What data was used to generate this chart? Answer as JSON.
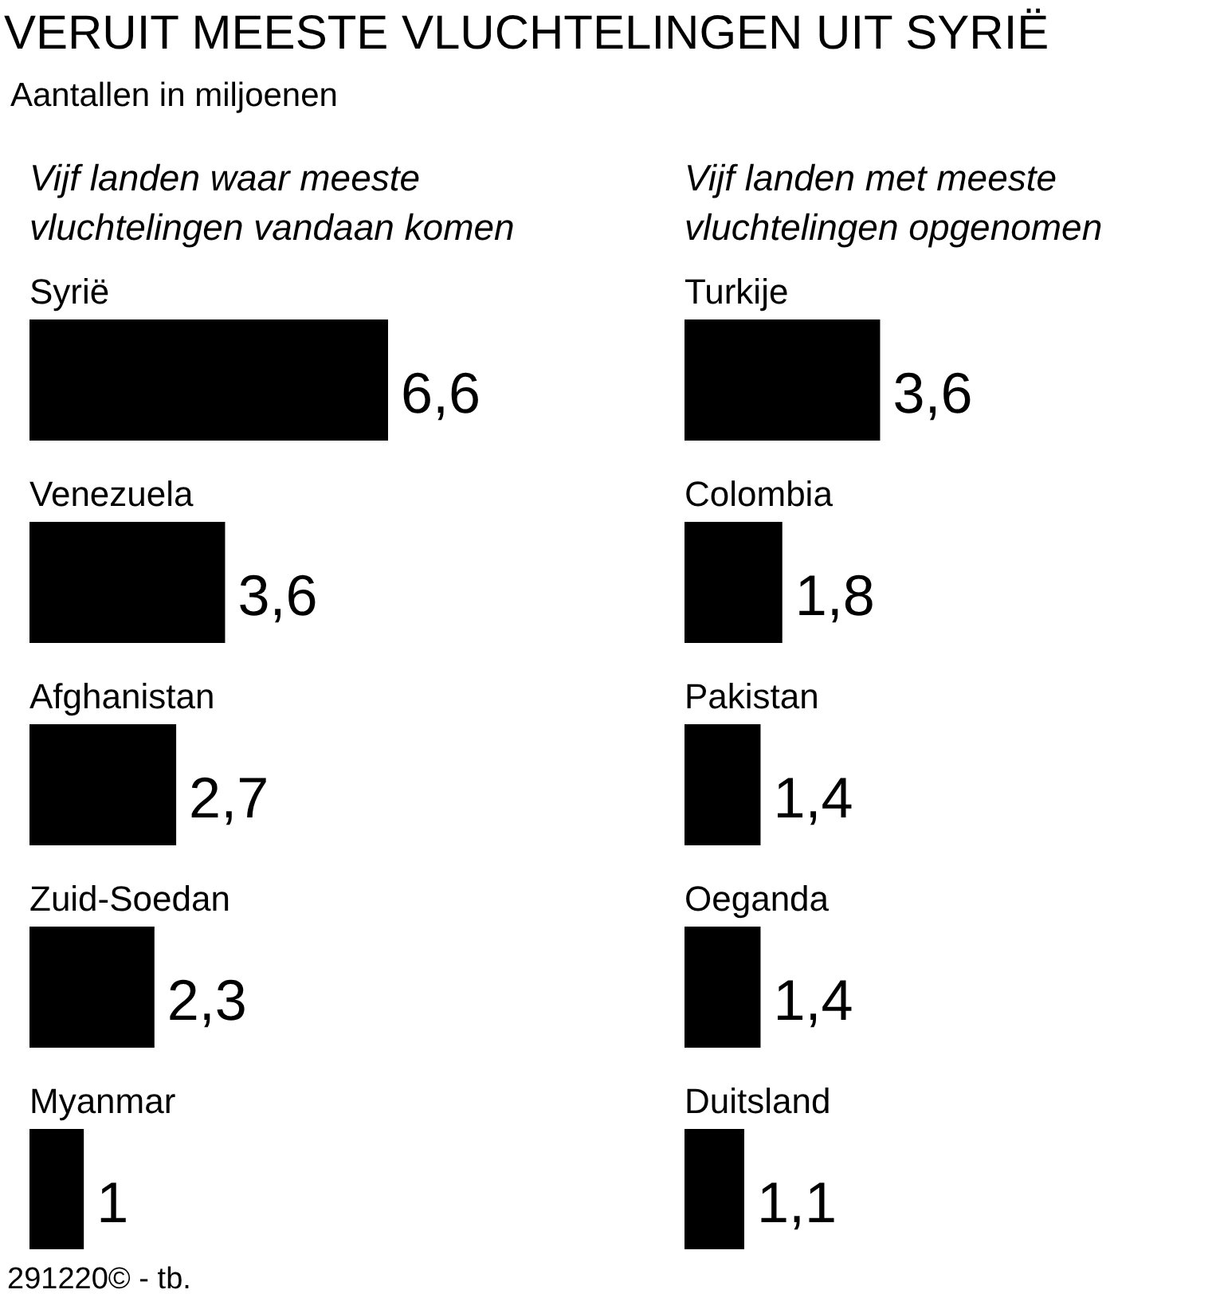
{
  "chart_data": [
    {
      "type": "other",
      "title": "VERUIT MEESTE VLUCHTELINGEN UIT SYRIË",
      "subtitle": "Aantallen in miljoenen",
      "annotations": [
        "291220© - tb."
      ]
    },
    {
      "type": "bar",
      "orientation": "horizontal",
      "title": "Vijf landen waar meeste vluchtelingen vandaan komen",
      "categories": [
        "Syrië",
        "Venezuela",
        "Afghanistan",
        "Zuid-Soedan",
        "Myanmar"
      ],
      "values": [
        6.6,
        3.6,
        2.7,
        2.3,
        1
      ],
      "value_labels": [
        "6,6",
        "3,6",
        "2,7",
        "2,3",
        "1"
      ],
      "color": "#000000",
      "tick_labels": "y"
    },
    {
      "type": "bar",
      "orientation": "horizontal",
      "title": "Vijf landen met meeste vluchtelingen opgenomen",
      "categories": [
        "Turkije",
        "Colombia",
        "Pakistan",
        "Oeganda",
        "Duitsland"
      ],
      "values": [
        3.6,
        1.8,
        1.4,
        1.4,
        1.1
      ],
      "value_labels": [
        "3,6",
        "1,8",
        "1,4",
        "1,4",
        "1,1"
      ],
      "color": "#000000",
      "tick_labels": "y"
    }
  ]
}
